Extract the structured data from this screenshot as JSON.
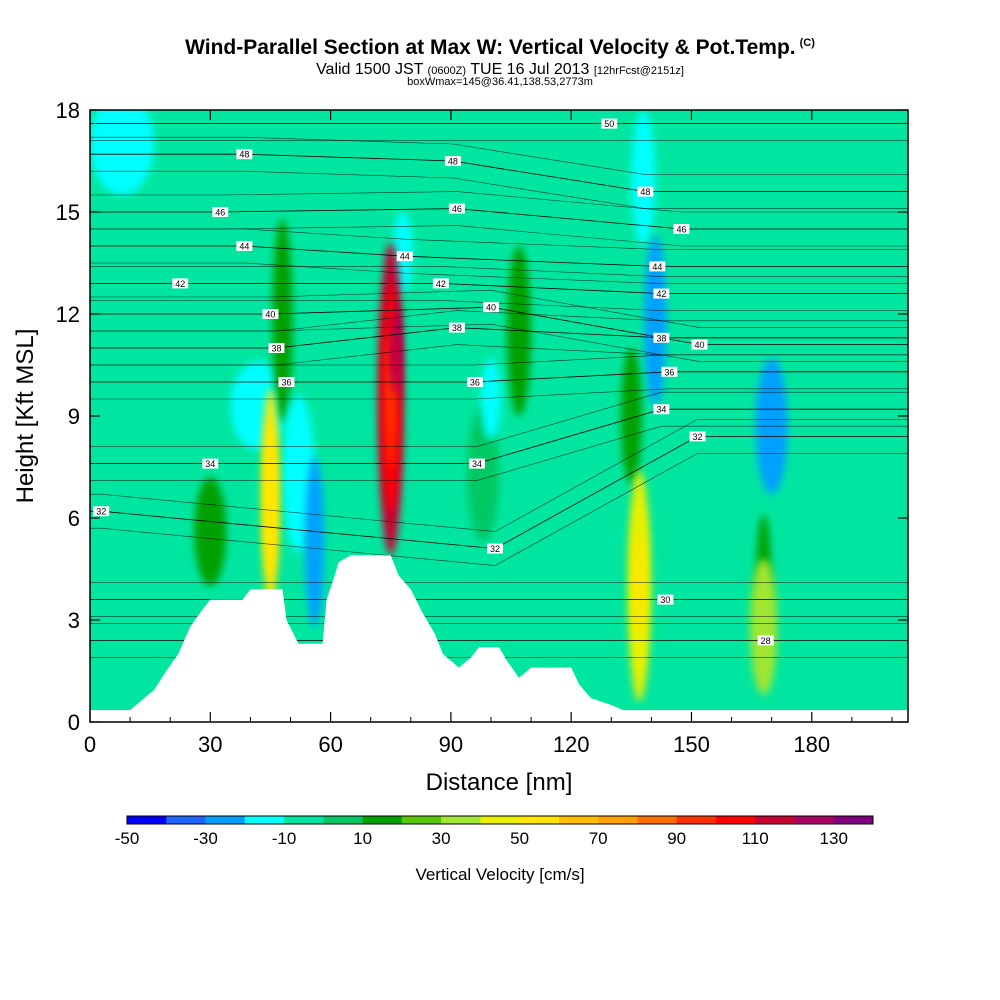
{
  "header": {
    "title": "Wind-Parallel Section at Max W: Vertical Velocity & Pot.Temp.",
    "copyright": "(C)",
    "valid_prefix": "Valid 1500 JST",
    "valid_utc": "(0600Z)",
    "valid_date": "TUE 16 Jul 2013",
    "forecast": "[12hrFcst@2151z]",
    "boxwmax": "boxWmax=145@36.41,138.53,2773m"
  },
  "chart_data": {
    "type": "heatmap",
    "title": "Wind-Parallel Section at Max W: Vertical Velocity & Pot.Temp.",
    "xlabel": "Distance [nm]",
    "ylabel": "Height [Kft MSL]",
    "xlim": [
      0,
      204
    ],
    "ylim": [
      0,
      18
    ],
    "x_ticks": [
      0,
      30,
      60,
      90,
      120,
      150,
      180
    ],
    "y_ticks": [
      0,
      3,
      6,
      9,
      12,
      15,
      18
    ],
    "background_value": -5,
    "colorbar": {
      "title": "Vertical Velocity [cm/s]",
      "levels": [
        -50,
        -40,
        -30,
        -20,
        -10,
        0,
        10,
        20,
        30,
        40,
        50,
        60,
        70,
        80,
        90,
        100,
        110,
        120,
        130,
        140
      ],
      "tick_labels": [
        -50,
        -30,
        -10,
        10,
        30,
        50,
        70,
        90,
        110,
        130
      ],
      "colors": [
        "#0000ff",
        "#1e64ff",
        "#00a0ff",
        "#00ffff",
        "#00e6a0",
        "#00c864",
        "#00a000",
        "#5ac800",
        "#a0e632",
        "#e6f000",
        "#ffe600",
        "#ffbe00",
        "#ffa000",
        "#ff6e00",
        "#ff3200",
        "#ff0000",
        "#c80032",
        "#aa0064",
        "#800080"
      ]
    },
    "terrain": [
      [
        0,
        0.35
      ],
      [
        10,
        0.35
      ],
      [
        13,
        0.65
      ],
      [
        16,
        0.95
      ],
      [
        19,
        1.5
      ],
      [
        22,
        2.0
      ],
      [
        25,
        2.8
      ],
      [
        28,
        3.3
      ],
      [
        30,
        3.6
      ],
      [
        38,
        3.6
      ],
      [
        40,
        3.9
      ],
      [
        48,
        3.9
      ],
      [
        49,
        3.0
      ],
      [
        52,
        2.3
      ],
      [
        58,
        2.3
      ],
      [
        59,
        3.6
      ],
      [
        61,
        4.3
      ],
      [
        62,
        4.7
      ],
      [
        65,
        4.9
      ],
      [
        75,
        4.9
      ],
      [
        77,
        4.3
      ],
      [
        80,
        3.9
      ],
      [
        83,
        3.2
      ],
      [
        86,
        2.6
      ],
      [
        88,
        2.0
      ],
      [
        90,
        1.8
      ],
      [
        92,
        1.6
      ],
      [
        95,
        1.9
      ],
      [
        97,
        2.2
      ],
      [
        102,
        2.2
      ],
      [
        104,
        1.8
      ],
      [
        107,
        1.3
      ],
      [
        110,
        1.6
      ],
      [
        120,
        1.6
      ],
      [
        122,
        1.1
      ],
      [
        125,
        0.7
      ],
      [
        130,
        0.5
      ],
      [
        133,
        0.35
      ],
      [
        204,
        0.35
      ]
    ],
    "vertical_velocity_features": [
      {
        "x": 45,
        "y": 6.6,
        "rx": 2.2,
        "ry": 3.2,
        "value": 55
      },
      {
        "x": 75,
        "y": 9.5,
        "rx": 3.2,
        "ry": 4.6,
        "value": 115
      },
      {
        "x": 76,
        "y": 10.8,
        "rx": 1.6,
        "ry": 1.6,
        "value": 135
      },
      {
        "x": 137,
        "y": 4.0,
        "rx": 2.8,
        "ry": 3.4,
        "value": 45
      },
      {
        "x": 135,
        "y": 9.0,
        "rx": 2.6,
        "ry": 2.0,
        "value": 15
      },
      {
        "x": 168,
        "y": 2.8,
        "rx": 3.4,
        "ry": 2.0,
        "value": 35
      },
      {
        "x": 168,
        "y": 4.5,
        "rx": 1.8,
        "ry": 1.6,
        "value": 15
      },
      {
        "x": 48,
        "y": 11.8,
        "rx": 2.5,
        "ry": 3.0,
        "value": 15
      },
      {
        "x": 30,
        "y": 5.6,
        "rx": 4.0,
        "ry": 1.6,
        "value": 15
      },
      {
        "x": 107,
        "y": 11.5,
        "rx": 3.0,
        "ry": 2.5,
        "value": 15
      },
      {
        "x": 98,
        "y": 7.3,
        "rx": 4.0,
        "ry": 2.0,
        "value": 5
      },
      {
        "x": 56,
        "y": 5.3,
        "rx": 2.4,
        "ry": 2.5,
        "value": -30
      },
      {
        "x": 52,
        "y": 7.3,
        "rx": 4.0,
        "ry": 2.3,
        "value": -15
      },
      {
        "x": 100,
        "y": 9.5,
        "rx": 2.5,
        "ry": 1.2,
        "value": -20
      },
      {
        "x": 78,
        "y": 13.8,
        "rx": 2.5,
        "ry": 1.2,
        "value": -20
      },
      {
        "x": 141,
        "y": 11.8,
        "rx": 2.8,
        "ry": 2.5,
        "value": -30
      },
      {
        "x": 170,
        "y": 8.7,
        "rx": 4.0,
        "ry": 2.0,
        "value": -30
      },
      {
        "x": 42,
        "y": 9.3,
        "rx": 7.0,
        "ry": 1.3,
        "value": -12
      },
      {
        "x": 8,
        "y": 17.0,
        "rx": 8.0,
        "ry": 1.5,
        "value": -12
      },
      {
        "x": 138,
        "y": 16.0,
        "rx": 3.0,
        "ry": 2.0,
        "value": -12
      }
    ],
    "theta_contours": [
      {
        "value": 28,
        "x": 168.5,
        "y": 2.4
      },
      {
        "value": 30,
        "x": 143.5,
        "y": 3.6
      },
      {
        "value": 32,
        "x": 101,
        "y": 5.1
      },
      {
        "value": 32,
        "x": 151.5,
        "y": 8.4
      },
      {
        "value": 32,
        "x": 2.8,
        "y": 6.2
      },
      {
        "value": 34,
        "x": 30,
        "y": 7.6
      },
      {
        "value": 34,
        "x": 96.5,
        "y": 7.6
      },
      {
        "value": 34,
        "x": 142.5,
        "y": 9.2
      },
      {
        "value": 36,
        "x": 49,
        "y": 10.0
      },
      {
        "value": 36,
        "x": 96,
        "y": 10.0
      },
      {
        "value": 36,
        "x": 144.5,
        "y": 10.3
      },
      {
        "value": 38,
        "x": 46.5,
        "y": 11.0
      },
      {
        "value": 38,
        "x": 91.5,
        "y": 11.6
      },
      {
        "value": 38,
        "x": 142.5,
        "y": 11.3
      },
      {
        "value": 40,
        "x": 45,
        "y": 12.0
      },
      {
        "value": 40,
        "x": 100,
        "y": 12.2
      },
      {
        "value": 40,
        "x": 152,
        "y": 11.1
      },
      {
        "value": 42,
        "x": 22.5,
        "y": 12.9
      },
      {
        "value": 42,
        "x": 87.5,
        "y": 12.9
      },
      {
        "value": 42,
        "x": 142.5,
        "y": 12.6
      },
      {
        "value": 44,
        "x": 38.5,
        "y": 14.0
      },
      {
        "value": 44,
        "x": 78.5,
        "y": 13.7
      },
      {
        "value": 44,
        "x": 141.5,
        "y": 13.4
      },
      {
        "value": 46,
        "x": 32.5,
        "y": 15.0
      },
      {
        "value": 46,
        "x": 91.5,
        "y": 15.1
      },
      {
        "value": 46,
        "x": 147.5,
        "y": 14.5
      },
      {
        "value": 48,
        "x": 38.5,
        "y": 16.7
      },
      {
        "value": 48,
        "x": 90.5,
        "y": 16.5
      },
      {
        "value": 48,
        "x": 138.5,
        "y": 15.6
      },
      {
        "value": 50,
        "x": 129.5,
        "y": 17.6
      }
    ]
  }
}
